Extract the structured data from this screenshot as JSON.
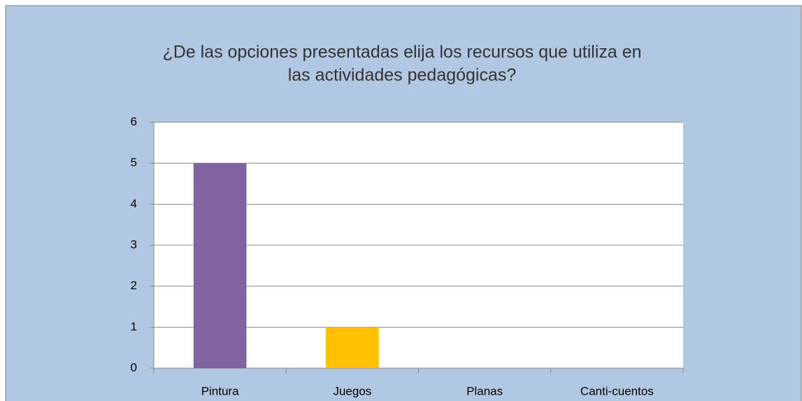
{
  "chart_data": {
    "type": "bar",
    "title": [
      "¿De las opciones presentadas elija los recursos que utiliza en",
      "las actividades pedagógicas?"
    ],
    "categories": [
      "Pintura",
      "Juegos",
      "Planas",
      "Canti-cuentos"
    ],
    "values": [
      5,
      1,
      0,
      0
    ],
    "colors": [
      "#8064a2",
      "#ffc000",
      "#4f81bd",
      "#9bbb59"
    ],
    "ylim": [
      0,
      6
    ],
    "yticks": [
      0,
      1,
      2,
      3,
      4,
      5,
      6
    ],
    "grid": true
  }
}
